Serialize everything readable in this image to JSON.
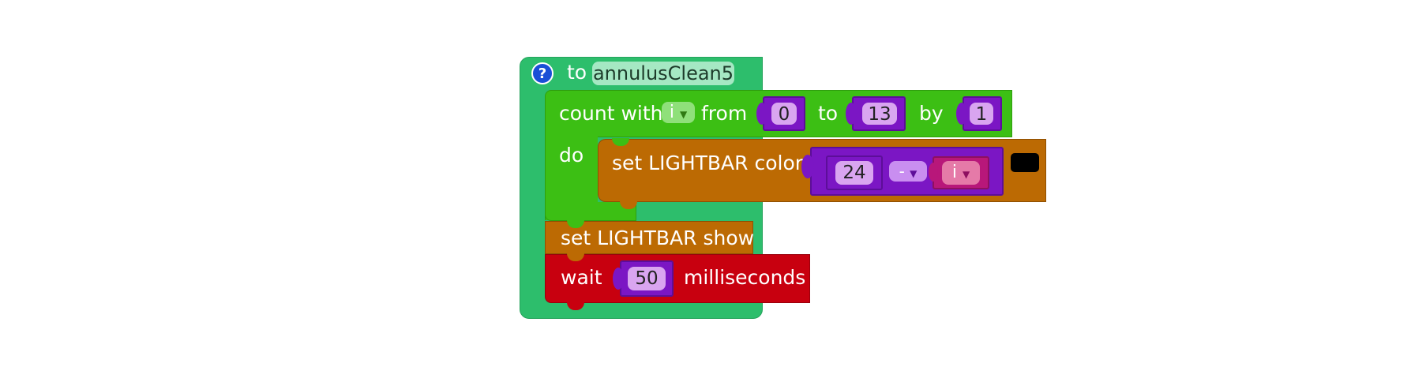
{
  "procedure": {
    "help_icon": "question-mark",
    "keyword": "to",
    "name": "annulusClean5"
  },
  "loop": {
    "label": "count with",
    "var_name": "i",
    "from_label": "from",
    "from_value": "0",
    "to_label": "to",
    "to_value": "13",
    "by_label": "by",
    "by_value": "1",
    "do_label": "do"
  },
  "set_color": {
    "label": "set LIGHTBAR color",
    "left_value": "24",
    "operator": "-",
    "right_var": "i",
    "color_swatch": "#000000"
  },
  "set_show": {
    "label": "set LIGHTBAR show"
  },
  "wait": {
    "label": "wait",
    "value": "50",
    "unit": "milliseconds"
  },
  "colors": {
    "procedure": "#2dbe6c",
    "loop": "#3cbf14",
    "lightbar": "#bc6a03",
    "wait": "#c8000f",
    "math": "#7b16c4"
  }
}
